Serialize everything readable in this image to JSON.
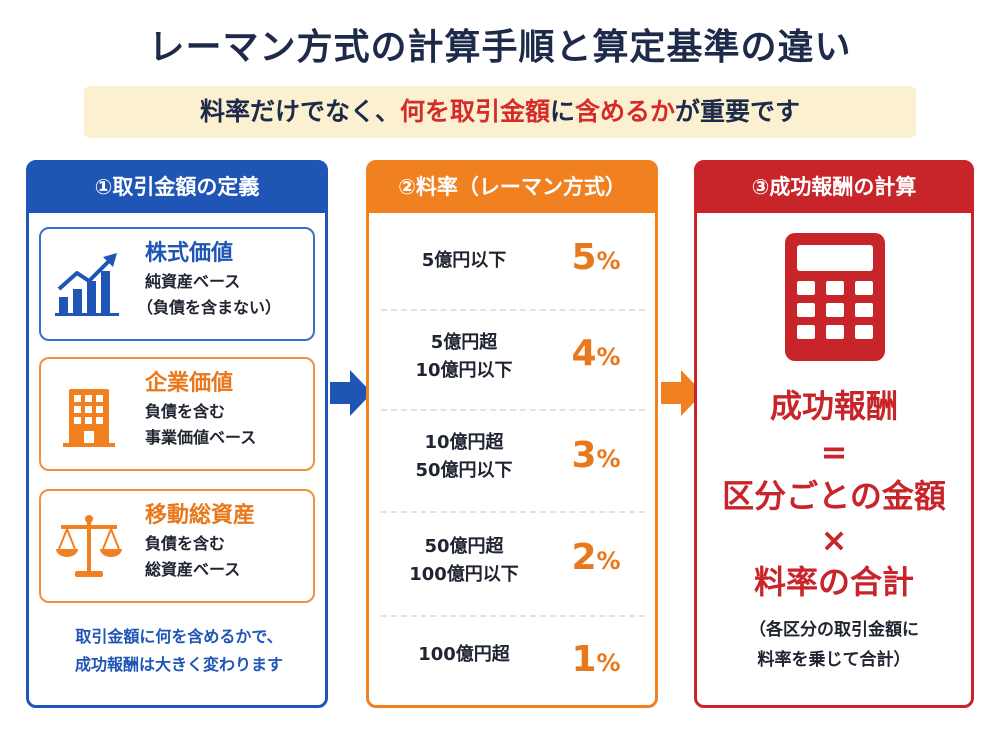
{
  "title": "レーマン方式の計算手順と算定基準の違い",
  "subtitle": {
    "pre": "料率だけでなく、",
    "em1": "何を取引金額",
    "mid": "に",
    "em2": "含めるか",
    "post": "が重要です"
  },
  "colors": {
    "blue": "#1f56b5",
    "orange": "#f08020",
    "red": "#c8252b",
    "highlight_bg": "#fbf0cf"
  },
  "column1": {
    "header": "①取引金額の定義",
    "cards": [
      {
        "name": "株式価値",
        "desc1": "純資産ベース",
        "desc2": "（負債を含まない）",
        "icon": "bar-chart-up-icon"
      },
      {
        "name": "企業価値",
        "desc1": "負債を含む",
        "desc2": "事業価値ベース",
        "icon": "building-icon"
      },
      {
        "name": "移動総資産",
        "desc1": "負債を含む",
        "desc2": "総資産ベース",
        "icon": "scales-icon"
      }
    ],
    "note1": "取引金額に何を含めるかで、",
    "note2": "成功報酬は大きく変わります"
  },
  "column2": {
    "header": "②料率（レーマン方式）",
    "rates": [
      {
        "line1": "5億円以下",
        "line2": "",
        "value": "5",
        "unit": "%"
      },
      {
        "line1": "5億円超",
        "line2": "10億円以下",
        "value": "4",
        "unit": "%"
      },
      {
        "line1": "10億円超",
        "line2": "50億円以下",
        "value": "3",
        "unit": "%"
      },
      {
        "line1": "50億円超",
        "line2": "100億円以下",
        "value": "2",
        "unit": "%"
      },
      {
        "line1": "100億円超",
        "line2": "",
        "value": "1",
        "unit": "%"
      }
    ]
  },
  "column3": {
    "header": "③成功報酬の計算",
    "icon": "calculator-icon",
    "formula": [
      "成功報酬",
      "=",
      "区分ごとの金額",
      "×",
      "料率の合計"
    ],
    "note1": "（各区分の取引金額に",
    "note2": "料率を乗じて合計）"
  }
}
